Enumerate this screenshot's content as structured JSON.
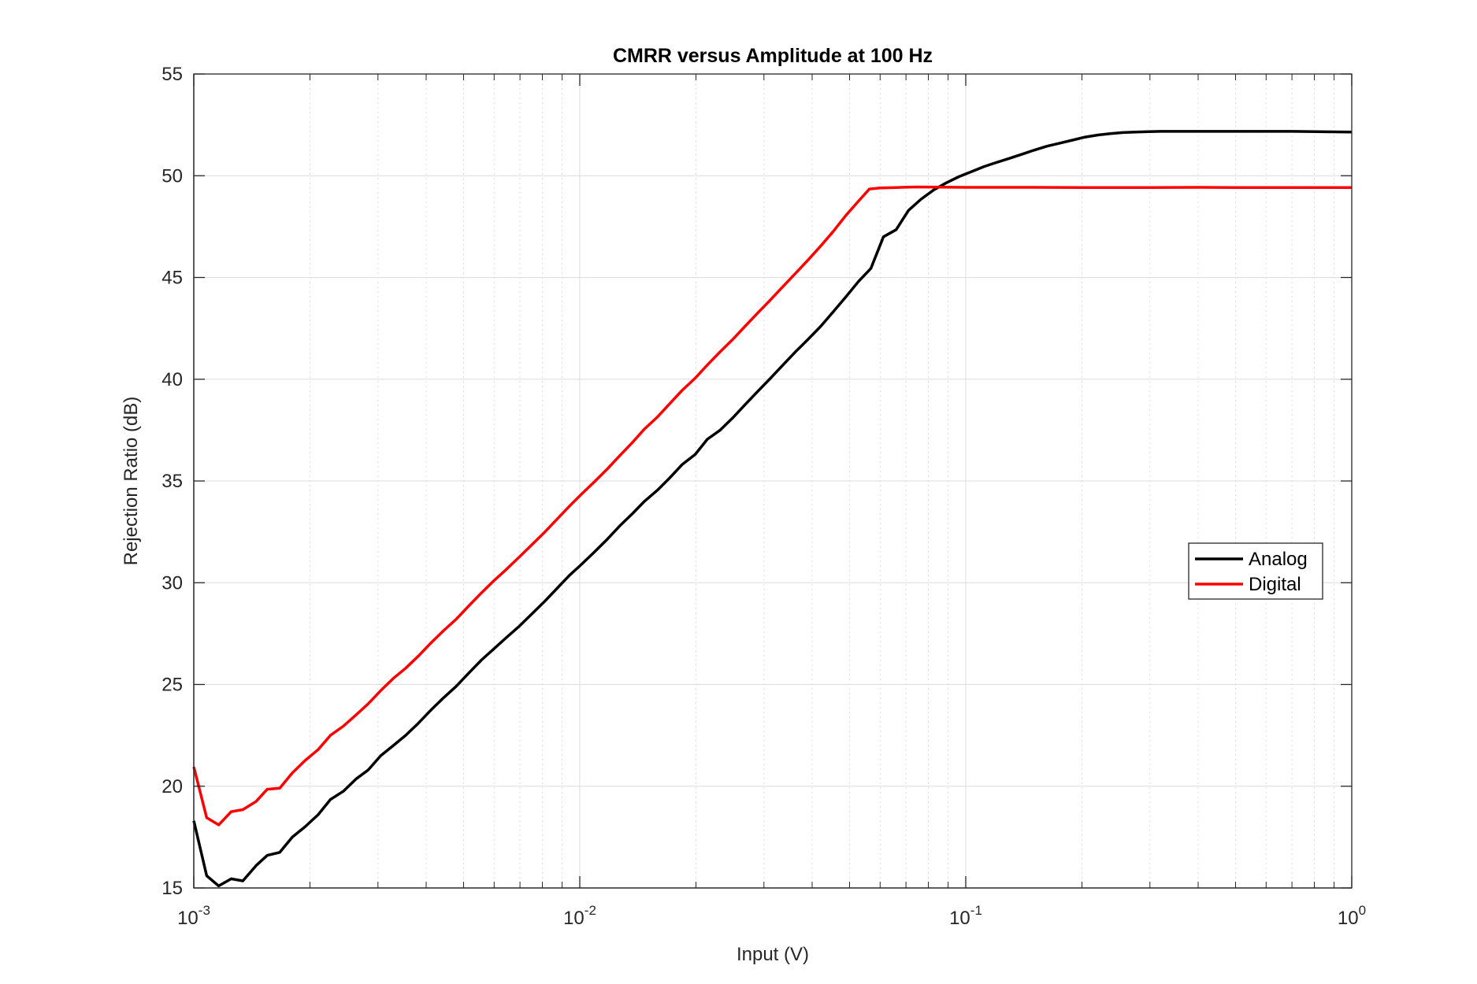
{
  "chart_data": {
    "type": "line",
    "title": "CMRR versus Amplitude at 100 Hz",
    "xlabel": "Input (V)",
    "ylabel": "Rejection Ratio (dB)",
    "xscale": "log",
    "xlim": [
      0.001,
      1
    ],
    "ylim": [
      15,
      55
    ],
    "x_ticks": [
      {
        "value": 0.001,
        "base": "10",
        "exp": "-3"
      },
      {
        "value": 0.01,
        "base": "10",
        "exp": "-2"
      },
      {
        "value": 0.1,
        "base": "10",
        "exp": "-1"
      },
      {
        "value": 1,
        "base": "10",
        "exp": "0"
      }
    ],
    "y_ticks": [
      "15",
      "20",
      "25",
      "30",
      "35",
      "40",
      "45",
      "50",
      "55"
    ],
    "grid": true,
    "legend_position": "right",
    "series": [
      {
        "name": "Analog",
        "color": "#000000",
        "points": [
          [
            0.001,
            18.3
          ],
          [
            0.00108,
            15.6
          ],
          [
            0.00116,
            15.1
          ],
          [
            0.00125,
            15.45
          ],
          [
            0.00134,
            15.35
          ],
          [
            0.00145,
            16.1
          ],
          [
            0.00155,
            16.6
          ],
          [
            0.00167,
            16.75
          ],
          [
            0.0018,
            17.5
          ],
          [
            0.00194,
            18.0
          ],
          [
            0.0021,
            18.6
          ],
          [
            0.00226,
            19.35
          ],
          [
            0.00244,
            19.75
          ],
          [
            0.00263,
            20.35
          ],
          [
            0.00283,
            20.8
          ],
          [
            0.00305,
            21.5
          ],
          [
            0.00329,
            22.0
          ],
          [
            0.00354,
            22.5
          ],
          [
            0.00382,
            23.1
          ],
          [
            0.00412,
            23.75
          ],
          [
            0.00444,
            24.35
          ],
          [
            0.00478,
            24.9
          ],
          [
            0.00515,
            25.55
          ],
          [
            0.00556,
            26.2
          ],
          [
            0.00599,
            26.75
          ],
          [
            0.00645,
            27.3
          ],
          [
            0.00696,
            27.85
          ],
          [
            0.0075,
            28.45
          ],
          [
            0.00808,
            29.05
          ],
          [
            0.00871,
            29.7
          ],
          [
            0.00939,
            30.35
          ],
          [
            0.0101,
            30.9
          ],
          [
            0.0109,
            31.5
          ],
          [
            0.0118,
            32.15
          ],
          [
            0.0127,
            32.8
          ],
          [
            0.0137,
            33.4
          ],
          [
            0.0147,
            34.0
          ],
          [
            0.0159,
            34.55
          ],
          [
            0.0171,
            35.15
          ],
          [
            0.0184,
            35.8
          ],
          [
            0.0199,
            36.3
          ],
          [
            0.0214,
            37.05
          ],
          [
            0.0231,
            37.5
          ],
          [
            0.0249,
            38.1
          ],
          [
            0.0268,
            38.75
          ],
          [
            0.0289,
            39.4
          ],
          [
            0.0312,
            40.05
          ],
          [
            0.0336,
            40.7
          ],
          [
            0.0362,
            41.35
          ],
          [
            0.039,
            41.95
          ],
          [
            0.0421,
            42.6
          ],
          [
            0.0453,
            43.3
          ],
          [
            0.0489,
            44.05
          ],
          [
            0.0527,
            44.8
          ],
          [
            0.0568,
            45.45
          ],
          [
            0.0612,
            47.0
          ],
          [
            0.066,
            47.35
          ],
          [
            0.0711,
            48.3
          ],
          [
            0.0766,
            48.85
          ],
          [
            0.0826,
            49.3
          ],
          [
            0.089,
            49.65
          ],
          [
            0.0959,
            49.95
          ],
          [
            0.1034,
            50.2
          ],
          [
            0.1115,
            50.45
          ],
          [
            0.1201,
            50.65
          ],
          [
            0.1295,
            50.85
          ],
          [
            0.1396,
            51.05
          ],
          [
            0.15,
            51.25
          ],
          [
            0.162,
            51.45
          ],
          [
            0.175,
            51.6
          ],
          [
            0.189,
            51.75
          ],
          [
            0.204,
            51.9
          ],
          [
            0.22,
            52.0
          ],
          [
            0.237,
            52.07
          ],
          [
            0.255,
            52.12
          ],
          [
            0.275,
            52.15
          ],
          [
            0.297,
            52.17
          ],
          [
            0.32,
            52.18
          ],
          [
            0.345,
            52.18
          ],
          [
            0.372,
            52.18
          ],
          [
            0.5,
            52.18
          ],
          [
            0.7,
            52.18
          ],
          [
            0.85,
            52.16
          ],
          [
            1.0,
            52.15
          ]
        ]
      },
      {
        "name": "Digital",
        "color": "#ff0000",
        "points": [
          [
            0.001,
            20.95
          ],
          [
            0.00108,
            18.45
          ],
          [
            0.00116,
            18.1
          ],
          [
            0.00125,
            18.75
          ],
          [
            0.00134,
            18.85
          ],
          [
            0.00145,
            19.25
          ],
          [
            0.00155,
            19.85
          ],
          [
            0.00167,
            19.9
          ],
          [
            0.0018,
            20.65
          ],
          [
            0.00194,
            21.25
          ],
          [
            0.0021,
            21.8
          ],
          [
            0.00226,
            22.5
          ],
          [
            0.00244,
            22.95
          ],
          [
            0.00263,
            23.5
          ],
          [
            0.00283,
            24.05
          ],
          [
            0.00305,
            24.7
          ],
          [
            0.00329,
            25.3
          ],
          [
            0.00354,
            25.8
          ],
          [
            0.00382,
            26.4
          ],
          [
            0.00412,
            27.05
          ],
          [
            0.00444,
            27.65
          ],
          [
            0.00478,
            28.2
          ],
          [
            0.00515,
            28.85
          ],
          [
            0.00556,
            29.5
          ],
          [
            0.00599,
            30.1
          ],
          [
            0.00645,
            30.65
          ],
          [
            0.00696,
            31.25
          ],
          [
            0.0075,
            31.85
          ],
          [
            0.00808,
            32.45
          ],
          [
            0.00871,
            33.1
          ],
          [
            0.00939,
            33.75
          ],
          [
            0.0101,
            34.35
          ],
          [
            0.0109,
            34.95
          ],
          [
            0.0118,
            35.6
          ],
          [
            0.0127,
            36.25
          ],
          [
            0.0137,
            36.9
          ],
          [
            0.0147,
            37.55
          ],
          [
            0.0159,
            38.15
          ],
          [
            0.0171,
            38.8
          ],
          [
            0.0184,
            39.45
          ],
          [
            0.0199,
            40.05
          ],
          [
            0.0214,
            40.7
          ],
          [
            0.0231,
            41.35
          ],
          [
            0.0249,
            41.95
          ],
          [
            0.0268,
            42.6
          ],
          [
            0.0289,
            43.25
          ],
          [
            0.0312,
            43.9
          ],
          [
            0.0336,
            44.55
          ],
          [
            0.0362,
            45.2
          ],
          [
            0.039,
            45.85
          ],
          [
            0.0421,
            46.55
          ],
          [
            0.0453,
            47.25
          ],
          [
            0.0489,
            48.05
          ],
          [
            0.0527,
            48.75
          ],
          [
            0.0563,
            49.35
          ],
          [
            0.06,
            49.4
          ],
          [
            0.066,
            49.42
          ],
          [
            0.075,
            49.45
          ],
          [
            0.1,
            49.43
          ],
          [
            0.15,
            49.43
          ],
          [
            0.2,
            49.42
          ],
          [
            0.3,
            49.42
          ],
          [
            0.4,
            49.43
          ],
          [
            0.5,
            49.42
          ],
          [
            0.7,
            49.42
          ],
          [
            1.0,
            49.42
          ]
        ]
      }
    ]
  }
}
